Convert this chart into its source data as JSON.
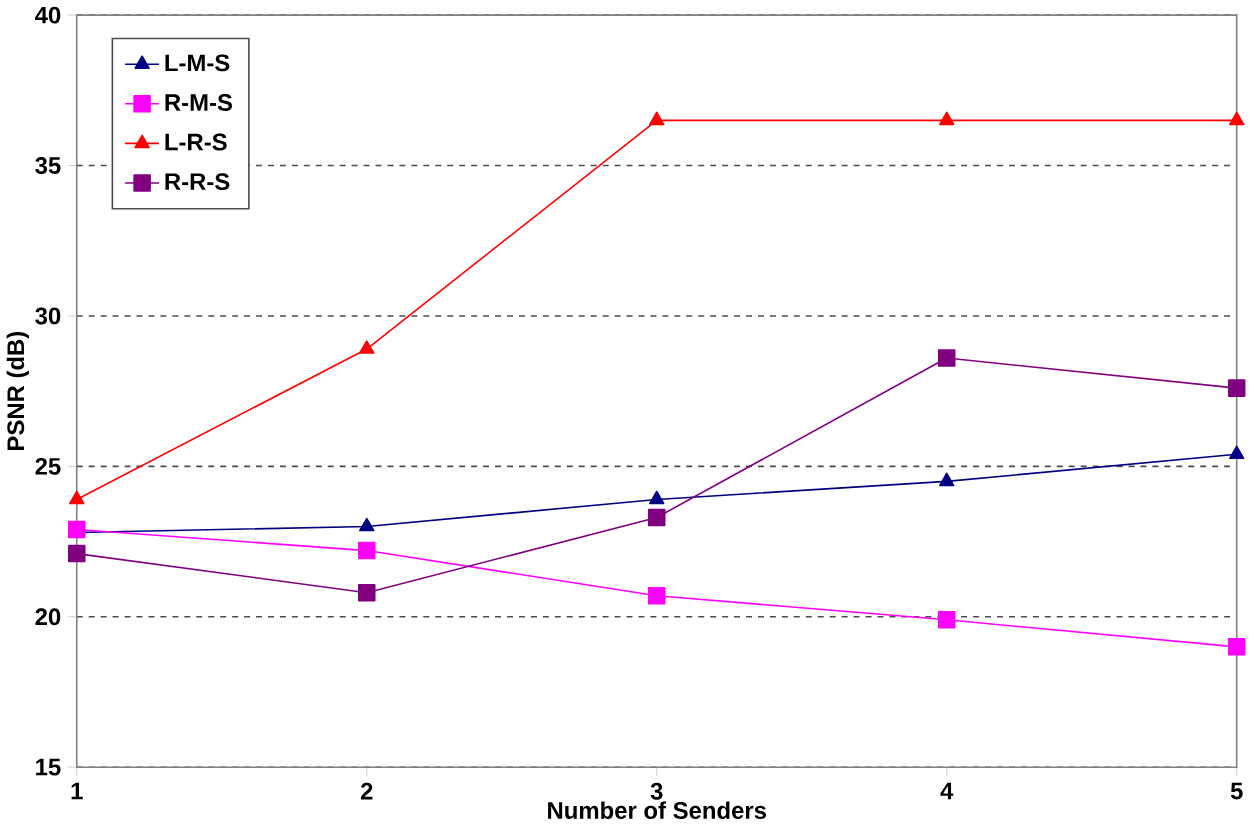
{
  "chart_data": {
    "type": "line",
    "xlabel": "Number of Senders",
    "ylabel": "PSNR (dB)",
    "x": [
      1,
      2,
      3,
      4,
      5
    ],
    "xlim": [
      1,
      5
    ],
    "xticks": [
      1,
      2,
      3,
      4,
      5
    ],
    "ylim": [
      15,
      40
    ],
    "yticks": [
      15,
      20,
      25,
      30,
      35,
      40
    ],
    "grid": "y",
    "legend": "top left",
    "line_style": "solid",
    "series": [
      {
        "name": "L-M-S",
        "color": "#000080",
        "marker": "triangle",
        "values": [
          22.8,
          23.0,
          23.9,
          24.5,
          25.4
        ]
      },
      {
        "name": "R-M-S",
        "color": "#ff00ff",
        "marker": "square",
        "values": [
          22.9,
          22.2,
          20.7,
          19.9,
          19.0
        ]
      },
      {
        "name": "L-R-S",
        "color": "#ff0000",
        "marker": "triangle",
        "values": [
          23.9,
          28.9,
          36.5,
          36.5,
          36.5
        ]
      },
      {
        "name": "R-R-S",
        "color": "#800080",
        "marker": "square",
        "values": [
          22.1,
          20.8,
          23.3,
          28.6,
          27.6
        ]
      }
    ]
  }
}
